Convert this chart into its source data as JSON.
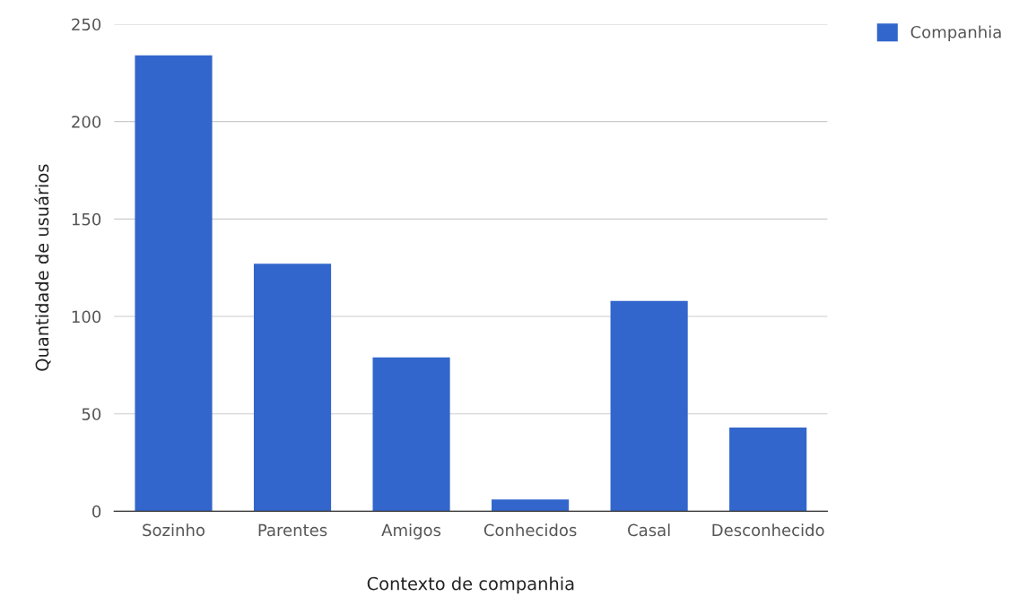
{
  "chart_data": {
    "type": "bar",
    "xlabel": "Contexto de companhia",
    "ylabel": "Quantidade de usuários",
    "categories": [
      "Sozinho",
      "Parentes",
      "Amigos",
      "Conhecidos",
      "Casal",
      "Desconhecido"
    ],
    "series": [
      {
        "name": "Companhia",
        "color": "#3366cc",
        "values": [
          234,
          127,
          79,
          6,
          108,
          43
        ]
      }
    ],
    "ylim": [
      0,
      250
    ],
    "yticks": [
      0,
      50,
      100,
      150,
      200,
      250
    ],
    "grid": "y",
    "legend": "top right"
  }
}
